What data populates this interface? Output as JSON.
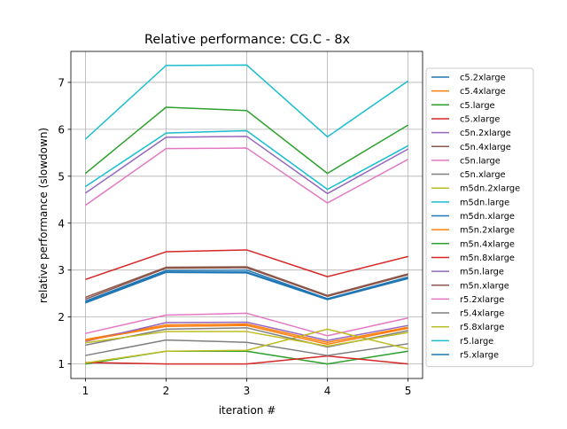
{
  "chart_data": {
    "type": "line",
    "title": "Relative performance: CG.C - 8x",
    "xlabel": "iteration #",
    "ylabel": "relative performance (slowdown)",
    "x": [
      1,
      2,
      3,
      4,
      5
    ],
    "x_ticks": [
      1,
      2,
      3,
      4,
      5
    ],
    "y_ticks": [
      1,
      2,
      3,
      4,
      5,
      6,
      7
    ],
    "xlim": [
      0.82,
      5.18
    ],
    "ylim": [
      0.69,
      7.66
    ],
    "grid": true,
    "legend_position": "right",
    "series": [
      {
        "name": "c5.2xlarge",
        "color": "#1f77b4",
        "values": [
          2.3,
          2.95,
          2.94,
          2.37,
          2.82
        ]
      },
      {
        "name": "c5.4xlarge",
        "color": "#ff7f0e",
        "values": [
          1.52,
          1.83,
          1.85,
          1.46,
          1.78
        ]
      },
      {
        "name": "c5.large",
        "color": "#2ca02c",
        "values": [
          1.0,
          1.27,
          1.27,
          1.0,
          1.27
        ]
      },
      {
        "name": "c5.xlarge",
        "color": "#d62728",
        "values": [
          1.03,
          1.0,
          1.0,
          1.17,
          1.0
        ]
      },
      {
        "name": "c5n.2xlarge",
        "color": "#9467bd",
        "values": [
          1.48,
          1.88,
          1.89,
          1.5,
          1.82
        ]
      },
      {
        "name": "c5n.4xlarge",
        "color": "#8c564b",
        "values": [
          2.42,
          3.06,
          3.07,
          2.46,
          2.92
        ]
      },
      {
        "name": "c5n.large",
        "color": "#e377c2",
        "values": [
          1.65,
          2.04,
          2.08,
          1.6,
          1.98
        ]
      },
      {
        "name": "c5n.xlarge",
        "color": "#7f7f7f",
        "values": [
          1.18,
          1.51,
          1.46,
          1.18,
          1.43
        ]
      },
      {
        "name": "m5dn.2xlarge",
        "color": "#bcbd22",
        "values": [
          1.02,
          1.27,
          1.29,
          1.74,
          1.32
        ]
      },
      {
        "name": "m5dn.large",
        "color": "#17becf",
        "values": [
          4.78,
          5.92,
          5.97,
          4.72,
          5.65
        ]
      },
      {
        "name": "m5dn.xlarge",
        "color": "#1f77b4",
        "values": [
          2.34,
          2.99,
          3.0,
          2.39,
          2.85
        ]
      },
      {
        "name": "m5n.2xlarge",
        "color": "#ff7f0e",
        "values": [
          1.5,
          1.8,
          1.82,
          1.42,
          1.76
        ]
      },
      {
        "name": "m5n.4xlarge",
        "color": "#2ca02c",
        "values": [
          5.06,
          6.47,
          6.4,
          5.06,
          6.09
        ]
      },
      {
        "name": "m5n.8xlarge",
        "color": "#d62728",
        "values": [
          2.8,
          3.39,
          3.43,
          2.86,
          3.29
        ]
      },
      {
        "name": "m5n.large",
        "color": "#9467bd",
        "values": [
          4.64,
          5.83,
          5.85,
          4.63,
          5.58
        ]
      },
      {
        "name": "m5n.xlarge",
        "color": "#8c564b",
        "values": [
          2.38,
          3.04,
          3.05,
          2.44,
          2.9
        ]
      },
      {
        "name": "r5.2xlarge",
        "color": "#e377c2",
        "values": [
          4.38,
          5.59,
          5.6,
          4.43,
          5.36
        ]
      },
      {
        "name": "r5.4xlarge",
        "color": "#7f7f7f",
        "values": [
          1.4,
          1.74,
          1.77,
          1.36,
          1.71
        ]
      },
      {
        "name": "r5.8xlarge",
        "color": "#bcbd22",
        "values": [
          1.45,
          1.69,
          1.69,
          1.38,
          1.67
        ]
      },
      {
        "name": "r5.large",
        "color": "#17becf",
        "values": [
          5.79,
          7.36,
          7.37,
          5.84,
          7.03
        ]
      },
      {
        "name": "r5.xlarge",
        "color": "#1f77b4",
        "values": [
          2.33,
          2.96,
          2.96,
          2.38,
          2.83
        ]
      }
    ]
  }
}
